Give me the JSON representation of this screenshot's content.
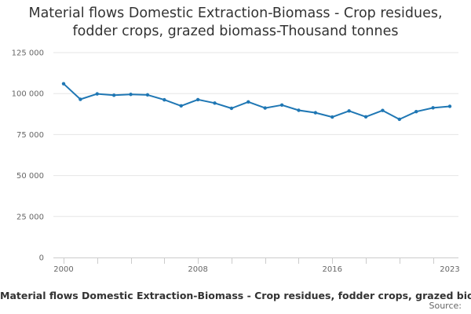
{
  "chart_title": {
    "line1": "Material flows Domestic Extraction-Biomass - Crop residues,",
    "line2": "fodder crops, grazed biomass-Thousand tonnes"
  },
  "footer": {
    "source_label": "Source:"
  },
  "chart_data": {
    "type": "line",
    "title": "Material flows Domestic Extraction-Biomass - Crop residues, fodder crops, grazed biomass-Thousand tonnes",
    "xlabel": "",
    "ylabel": "",
    "x": [
      2000,
      2001,
      2002,
      2003,
      2004,
      2005,
      2006,
      2007,
      2008,
      2009,
      2010,
      2011,
      2012,
      2013,
      2014,
      2015,
      2016,
      2017,
      2018,
      2019,
      2020,
      2021,
      2022,
      2023
    ],
    "series": [
      {
        "name": "Material flows Domestic Extraction-Biomass - Crop residues, fodder crops, grazed biomass-Thousand tonnes",
        "color": "#1f77b4",
        "values": [
          106000,
          96500,
          99800,
          99000,
          99500,
          99200,
          96200,
          92500,
          96300,
          94200,
          91000,
          94900,
          91200,
          93000,
          89800,
          88300,
          85700,
          89400,
          85800,
          89700,
          84300,
          89000,
          91300,
          92200
        ]
      }
    ],
    "x_tick_labels": [
      "2000",
      "2008",
      "2016",
      "2023"
    ],
    "x_tick_values": [
      2000,
      2008,
      2016,
      2023
    ],
    "y_tick_values": [
      0,
      25000,
      50000,
      75000,
      100000,
      125000
    ],
    "y_tick_labels": [
      "0",
      "25 000",
      "50 000",
      "75 000",
      "100 000",
      "125 000"
    ],
    "ylim": [
      0,
      125000
    ],
    "xlim": [
      2000,
      2023
    ],
    "grid": true,
    "legend_position": "bottom"
  }
}
